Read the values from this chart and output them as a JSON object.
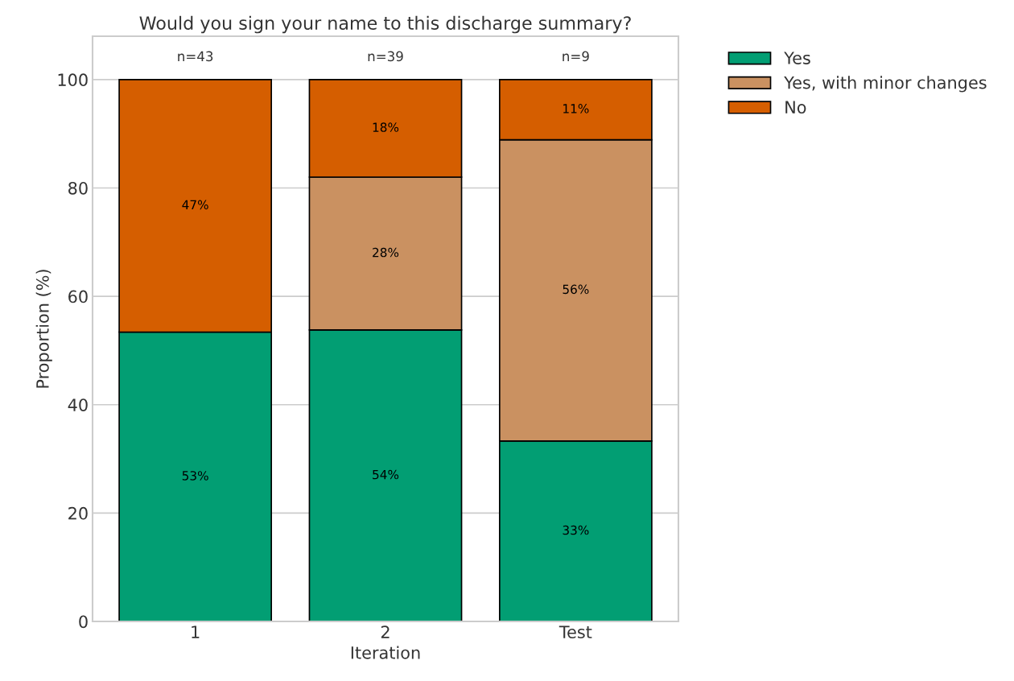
{
  "chart_data": {
    "type": "bar",
    "stacked": true,
    "title": "Would you sign your name to this discharge summary?",
    "xlabel": "Iteration",
    "ylabel": "Proportion (%)",
    "categories": [
      "1",
      "2",
      "Test"
    ],
    "series": [
      {
        "name": "Yes",
        "color": "#029e73",
        "values": [
          53.4,
          53.8,
          33.3
        ],
        "value_labels": [
          "53%",
          "54%",
          "33%"
        ]
      },
      {
        "name": "Yes, with minor changes",
        "color": "#ca9161",
        "values": [
          0,
          28.2,
          55.6
        ],
        "value_labels": [
          null,
          "28%",
          "56%"
        ]
      },
      {
        "name": "No",
        "color": "#d55e00",
        "values": [
          46.6,
          18.0,
          11.1
        ],
        "value_labels": [
          "47%",
          "18%",
          "11%"
        ]
      }
    ],
    "annotations": [
      {
        "text": "n=43",
        "x": "1",
        "y": 100
      },
      {
        "text": "n=39",
        "x": "2",
        "y": 100
      },
      {
        "text": "n=9",
        "x": "Test",
        "y": 100
      }
    ],
    "ylim": [
      0,
      108
    ],
    "yticks": [
      0,
      20,
      40,
      60,
      80,
      100
    ],
    "grid": "y",
    "legend": "top right"
  }
}
